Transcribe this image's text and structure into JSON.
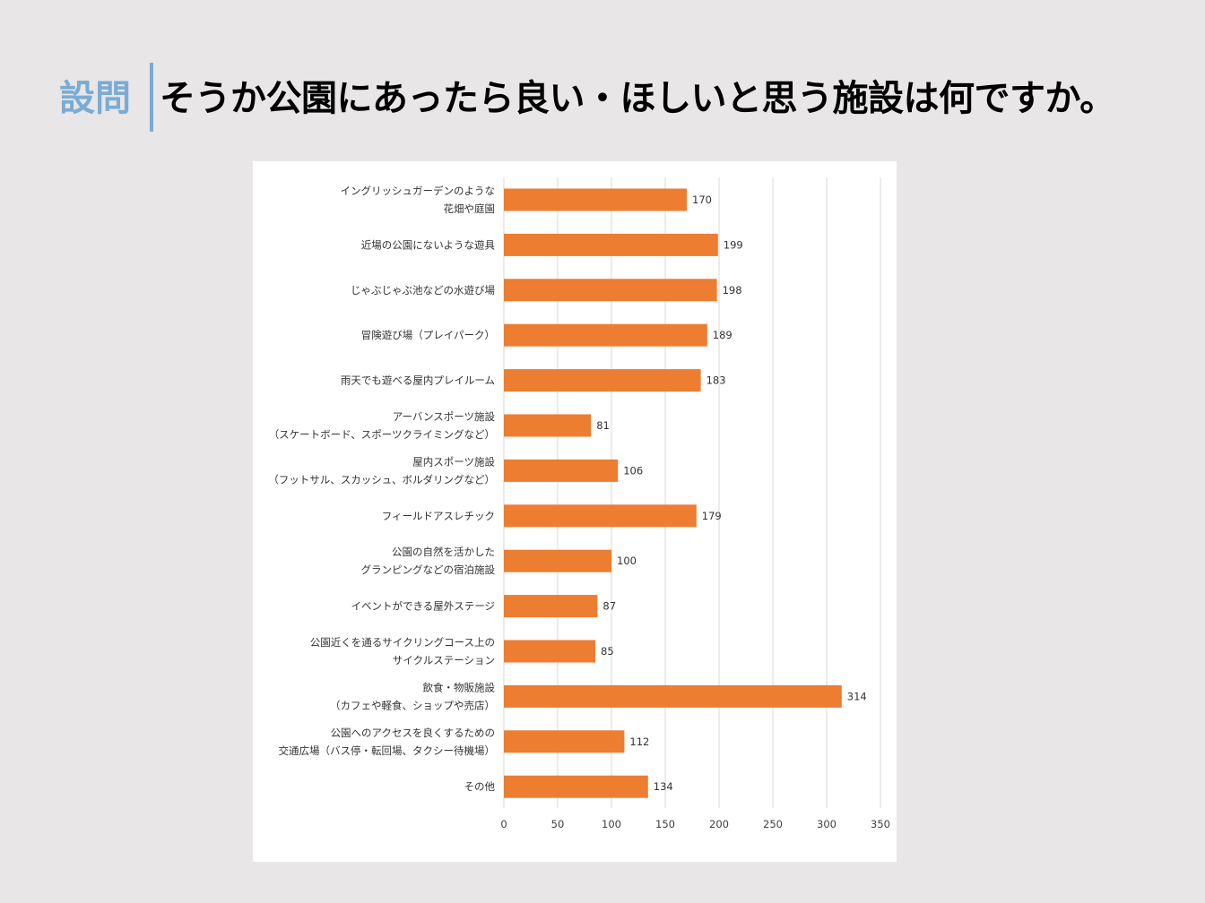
{
  "header": {
    "question_label": "設問",
    "title": "そうか公園にあったら良い・ほしいと思う施設は何ですか。"
  },
  "colors": {
    "background": "#e8e6e7",
    "accent": "#79acd5",
    "bar": "#ed7d31",
    "gridline": "#d9d9d9"
  },
  "chart_data": {
    "type": "bar",
    "orientation": "horizontal",
    "categories": [
      [
        "イングリッシュガーデンのような",
        "花畑や庭園"
      ],
      [
        "近場の公園にないような遊具"
      ],
      [
        "じゃぶじゃぶ池などの水遊び場"
      ],
      [
        "冒険遊び場（プレイパーク）"
      ],
      [
        "雨天でも遊べる屋内プレイルーム"
      ],
      [
        "アーバンスポーツ施設",
        "（スケートボード、スポーツクライミングなど）"
      ],
      [
        "屋内スポーツ施設",
        "（フットサル、スカッシュ、ボルダリングなど）"
      ],
      [
        "フィールドアスレチック"
      ],
      [
        "公園の自然を活かした",
        "グランピングなどの宿泊施設"
      ],
      [
        "イベントができる屋外ステージ"
      ],
      [
        "公園近くを通るサイクリングコース上の",
        "サイクルステーション"
      ],
      [
        "飲食・物販施設",
        "（カフェや軽食、ショップや売店）"
      ],
      [
        "公園へのアクセスを良くするための",
        "交通広場（バス停・転回場、タクシー待機場）"
      ],
      [
        "その他"
      ]
    ],
    "values": [
      170,
      199,
      198,
      189,
      183,
      81,
      106,
      179,
      100,
      87,
      85,
      314,
      112,
      134
    ],
    "data_labels": [
      "170",
      "199",
      "198",
      "189",
      "183",
      "81",
      "106",
      "179",
      "100",
      "87",
      "85",
      "314",
      "112",
      "134"
    ],
    "xlim": [
      0,
      350
    ],
    "x_ticks": [
      "0",
      "50",
      "100",
      "150",
      "200",
      "250",
      "300",
      "350"
    ],
    "grid": true,
    "legend": false
  }
}
